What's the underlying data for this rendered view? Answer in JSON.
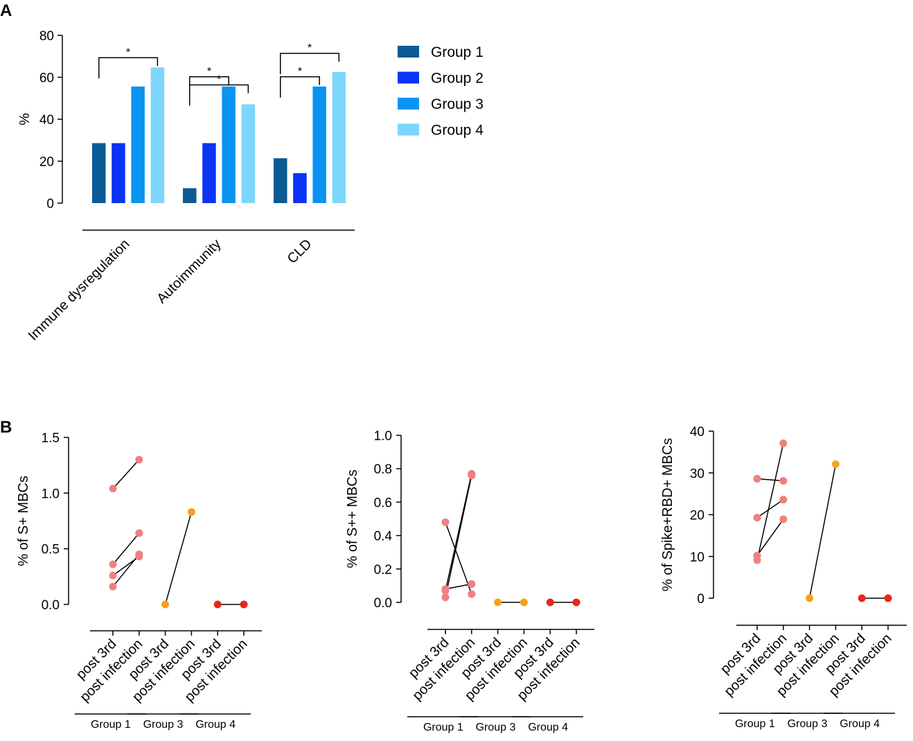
{
  "figure": {
    "panel_a_label": "A",
    "panel_b_label": "B"
  },
  "chart_data": [
    {
      "id": "A",
      "type": "bar",
      "title": "",
      "xlabel": "",
      "ylabel": "%",
      "ylim": [
        0,
        80
      ],
      "yticks": [
        0,
        20,
        40,
        60,
        80
      ],
      "categories": [
        "Immune dysregulation",
        "Autoimmunity",
        "CLD"
      ],
      "series": [
        {
          "name": "Group 1",
          "color": "#0b5a96",
          "values": [
            28.6,
            7.1,
            21.4
          ]
        },
        {
          "name": "Group 2",
          "color": "#0a33f5",
          "values": [
            28.6,
            28.6,
            14.3
          ]
        },
        {
          "name": "Group 3",
          "color": "#0a93f2",
          "values": [
            55.6,
            55.6,
            55.6
          ]
        },
        {
          "name": "Group 4",
          "color": "#7dd6fd",
          "values": [
            64.7,
            47.1,
            62.5
          ]
        }
      ],
      "legend_position": "right",
      "significance": [
        {
          "category": 0,
          "from": 0,
          "to": 3,
          "label": "*"
        },
        {
          "category": 1,
          "from": 0,
          "to": 2,
          "label": "*"
        },
        {
          "category": 1,
          "from": 0,
          "to": 3,
          "label": "*"
        },
        {
          "category": 2,
          "from": 0,
          "to": 2,
          "label": "*"
        },
        {
          "category": 2,
          "from": 0,
          "to": 3,
          "label": "*"
        }
      ]
    },
    {
      "id": "B1",
      "type": "scatter",
      "subtype": "paired",
      "ylabel": "% of S+ MBCs",
      "ylim": [
        0,
        1.5
      ],
      "yticks": [
        "0.0",
        "0.5",
        "1.0",
        "1.5"
      ],
      "x_labels": [
        "post 3rd",
        "post infection",
        "post 3rd",
        "post infection",
        "post 3rd",
        "post infection"
      ],
      "groups": [
        {
          "name": "Group 1",
          "color": "#f08080",
          "pairs": [
            [
              1.04,
              1.3
            ],
            [
              0.36,
              0.64
            ],
            [
              0.26,
              0.43
            ],
            [
              0.16,
              0.45
            ]
          ]
        },
        {
          "name": "Group 3",
          "color": "#f5a31a",
          "pairs": [
            [
              0.0,
              0.83
            ]
          ]
        },
        {
          "name": "Group 4",
          "color": "#e8261c",
          "pairs": [
            [
              0.0,
              0.0
            ]
          ]
        }
      ]
    },
    {
      "id": "B2",
      "type": "scatter",
      "subtype": "paired",
      "ylabel": "% of S++ MBCs",
      "ylim": [
        0,
        1.0
      ],
      "yticks": [
        "0.0",
        "0.2",
        "0.4",
        "0.6",
        "0.8",
        "1.0"
      ],
      "x_labels": [
        "post 3rd",
        "post infection",
        "post 3rd",
        "post infection",
        "post 3rd",
        "post infection"
      ],
      "groups": [
        {
          "name": "Group 1",
          "color": "#f08080",
          "pairs": [
            [
              0.48,
              0.05
            ],
            [
              0.08,
              0.11
            ],
            [
              0.07,
              0.77
            ],
            [
              0.03,
              0.76
            ]
          ]
        },
        {
          "name": "Group 3",
          "color": "#f5a31a",
          "pairs": [
            [
              0.0,
              0.0
            ]
          ]
        },
        {
          "name": "Group 4",
          "color": "#e8261c",
          "pairs": [
            [
              0.0,
              0.0
            ]
          ]
        }
      ]
    },
    {
      "id": "B3",
      "type": "scatter",
      "subtype": "paired",
      "ylabel": "% of Spike+RBD+ MBCs",
      "ylim": [
        0,
        40
      ],
      "yticks": [
        "0",
        "10",
        "20",
        "30",
        "40"
      ],
      "x_labels": [
        "post 3rd",
        "post infection",
        "post 3rd",
        "post infection",
        "post 3rd",
        "post infection"
      ],
      "groups": [
        {
          "name": "Group 1",
          "color": "#f08080",
          "pairs": [
            [
              28.6,
              28.1
            ],
            [
              19.3,
              23.6
            ],
            [
              10.2,
              18.9
            ],
            [
              9.1,
              37.1
            ]
          ]
        },
        {
          "name": "Group 3",
          "color": "#f5a31a",
          "pairs": [
            [
              0.0,
              32.1
            ]
          ]
        },
        {
          "name": "Group 4",
          "color": "#e8261c",
          "pairs": [
            [
              0.0,
              0.0
            ]
          ]
        }
      ]
    }
  ]
}
